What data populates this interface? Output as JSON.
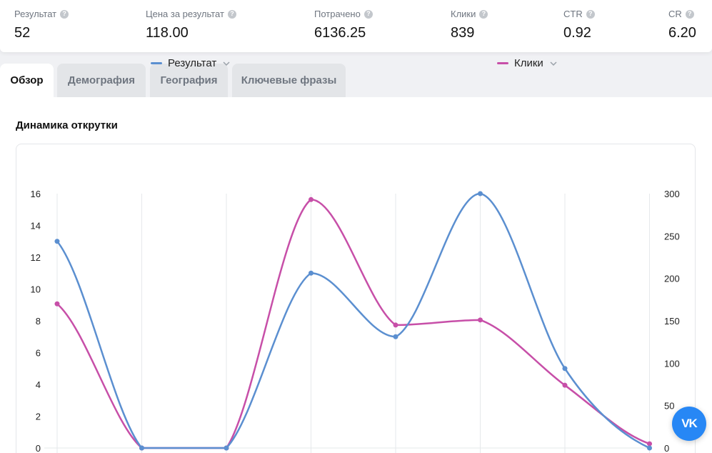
{
  "metrics": [
    {
      "label": "Результат",
      "value": "52"
    },
    {
      "label": "Цена за результат",
      "value": "118.00"
    },
    {
      "label": "Потрачено",
      "value": "6136.25"
    },
    {
      "label": "Клики",
      "value": "839"
    },
    {
      "label": "CTR",
      "value": "0.92"
    },
    {
      "label": "CR",
      "value": "6.20"
    }
  ],
  "tabs": [
    {
      "label": "Обзор",
      "active": true
    },
    {
      "label": "Демография",
      "active": false
    },
    {
      "label": "География",
      "active": false
    },
    {
      "label": "Ключевые фразы",
      "active": false
    }
  ],
  "section_title": "Динамика открутки",
  "vk_button": {
    "label": "VK"
  },
  "chart_data": {
    "type": "line",
    "title": "",
    "grid": "vertical",
    "legend": "top",
    "y_left": {
      "min": 0,
      "max": 16,
      "ticks": [
        "0",
        "2",
        "4",
        "6",
        "8",
        "10",
        "12",
        "14",
        "16"
      ]
    },
    "y_right": {
      "min": 0,
      "max": 300,
      "ticks": [
        "0",
        "50",
        "100",
        "150",
        "200",
        "250",
        "300"
      ]
    },
    "series": [
      {
        "name": "Результат",
        "axis": "left",
        "color": "#5b8fd0",
        "values": [
          13,
          0,
          0,
          11,
          7,
          16,
          5,
          0
        ]
      },
      {
        "name": "Клики",
        "axis": "right",
        "color": "#c74fa8",
        "values": [
          170,
          0,
          0,
          293,
          145,
          151,
          74,
          5
        ]
      }
    ]
  }
}
